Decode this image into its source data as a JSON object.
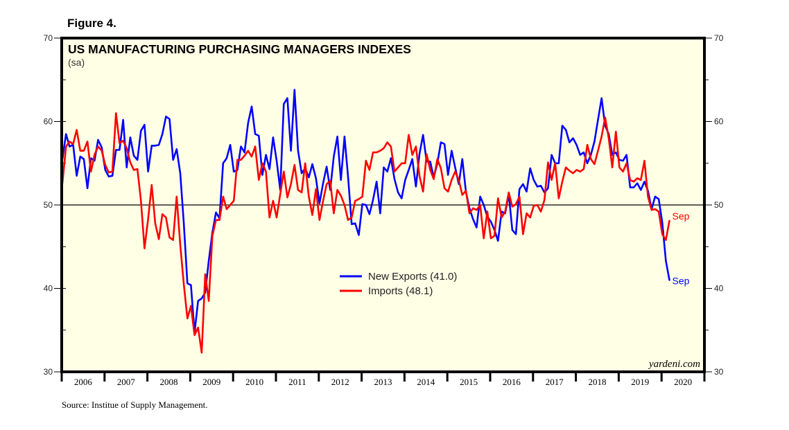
{
  "figure_label": "Figure 4.",
  "source": "Source: Institue of Supply Management.",
  "credit": "yardeni.com",
  "chart_data": {
    "type": "line",
    "title": "US MANUFACTURING PURCHASING MANAGERS INDEXES",
    "subtitle": "(sa)",
    "xlabel": "",
    "ylabel": "",
    "ylim": [
      30,
      70
    ],
    "yticks": [
      30,
      40,
      50,
      60,
      70
    ],
    "ytick_labels": [
      "30",
      "40",
      "50",
      "60",
      "70"
    ],
    "reference_line": 50,
    "x_start": "2006-01",
    "x_end": "2020-12",
    "x_frequency": "monthly",
    "x_tick_labels": [
      "2006",
      "2007",
      "2008",
      "2009",
      "2010",
      "2011",
      "2012",
      "2013",
      "2014",
      "2015",
      "2016",
      "2017",
      "2018",
      "2019",
      "2020"
    ],
    "legend_position": "center",
    "grid": false,
    "series": [
      {
        "name": "New Exports",
        "legend_label": "New Exports (41.0)",
        "color": "#0000ff",
        "end_label": "Sep",
        "last_value": 41.0,
        "values": [
          55.5,
          58.5,
          57.0,
          57.2,
          53.5,
          55.8,
          55.5,
          52.0,
          55.6,
          55.3,
          57.8,
          56.9,
          54.2,
          53.4,
          53.5,
          56.6,
          56.6,
          60.2,
          54.5,
          58.1,
          55.9,
          55.4,
          58.9,
          59.6,
          54.0,
          57.1,
          57.1,
          57.2,
          58.5,
          60.6,
          60.3,
          55.4,
          56.7,
          53.8,
          47.8,
          40.6,
          40.4,
          34.7,
          38.5,
          38.8,
          39.5,
          43.3,
          46.7,
          49.1,
          48.4,
          55.0,
          55.6,
          57.2,
          54.0,
          54.2,
          57.0,
          56.3,
          59.8,
          61.8,
          58.5,
          58.3,
          53.6,
          56.0,
          54.3,
          58.1,
          55.3,
          51.8,
          62.1,
          62.8,
          56.5,
          63.8,
          56.5,
          53.8,
          54.4,
          53.3,
          54.9,
          53.2,
          50.2,
          52.6,
          54.6,
          51.8,
          55.8,
          58.2,
          53.0,
          58.2,
          53.4,
          47.7,
          47.8,
          46.4,
          50.1,
          50.0,
          48.9,
          50.6,
          52.8,
          49.0,
          54.5,
          54.0,
          55.6,
          53.1,
          51.5,
          50.8,
          53.0,
          54.2,
          55.5,
          52.2,
          56.1,
          58.4,
          55.2,
          55.2,
          53.3,
          55.0,
          57.5,
          57.3,
          53.6,
          56.5,
          54.5,
          52.5,
          55.5,
          51.6,
          49.6,
          48.3,
          47.3,
          51.0,
          50.0,
          48.6,
          48.0,
          47.0,
          45.7,
          49.2,
          49.0,
          51.3,
          47.0,
          46.5,
          51.9,
          52.5,
          51.6,
          54.4,
          53.0,
          52.2,
          52.3,
          51.5,
          52.0,
          56.0,
          55.0,
          55.0,
          59.5,
          59.0,
          57.5,
          58.0,
          57.2,
          56.0,
          56.3,
          55.0,
          56.0,
          57.6,
          60.2,
          62.8,
          59.5,
          58.5,
          56.0,
          56.3,
          55.4,
          55.3,
          56.0,
          52.1,
          52.1,
          52.6,
          51.8,
          52.8,
          51.7,
          49.5,
          51.0,
          50.7,
          47.9,
          43.3,
          41.0
        ]
      },
      {
        "name": "Imports",
        "legend_label": "Imports (48.1)",
        "color": "#ff0000",
        "end_label": "Sep",
        "last_value": 48.1,
        "values": [
          52.6,
          57.0,
          57.6,
          57.3,
          59.0,
          56.5,
          56.5,
          57.6,
          54.0,
          56.0,
          57.0,
          56.5,
          54.8,
          53.9,
          54.0,
          61.0,
          57.4,
          57.7,
          56.8,
          55.1,
          54.2,
          54.3,
          50.5,
          44.8,
          48.3,
          52.4,
          47.8,
          45.9,
          48.9,
          48.5,
          46.1,
          45.8,
          51.0,
          45.2,
          40.5,
          36.4,
          37.9,
          34.4,
          35.3,
          32.3,
          41.7,
          38.5,
          46.3,
          48.2,
          48.2,
          51.0,
          49.5,
          50.0,
          50.5,
          55.4,
          55.4,
          55.9,
          56.5,
          55.8,
          57.0,
          53.0,
          55.0,
          54.0,
          48.5,
          50.5,
          48.5,
          51.3,
          54.0,
          50.9,
          52.5,
          54.8,
          51.8,
          51.5,
          55.0,
          51.0,
          48.8,
          51.9,
          48.2,
          50.5,
          52.5,
          52.9,
          49.0,
          51.8,
          51.1,
          50.0,
          48.2,
          48.5,
          50.5,
          50.7,
          51.0,
          55.3,
          54.2,
          56.3,
          56.3,
          56.5,
          56.8,
          57.5,
          57.0,
          54.0,
          54.5,
          55.0,
          55.0,
          58.4,
          56.0,
          57.0,
          53.5,
          51.6,
          56.1,
          54.2,
          53.1,
          55.5,
          54.4,
          52.0,
          51.6,
          53.0,
          54.0,
          53.0,
          51.2,
          51.7,
          49.0,
          49.6,
          49.4,
          50.0,
          46.0,
          49.2,
          46.0,
          46.3,
          50.8,
          48.5,
          49.2,
          51.5,
          49.8,
          50.1,
          51.0,
          46.5,
          49.0,
          48.5,
          49.9,
          50.0,
          49.2,
          50.6,
          55.1,
          53.0,
          55.0,
          50.8,
          52.8,
          54.5,
          54.1,
          53.8,
          54.2,
          54.0,
          54.3,
          57.2,
          55.5,
          54.9,
          56.5,
          58.2,
          60.5,
          58.0,
          54.5,
          58.8,
          54.5,
          54.0,
          55.0,
          53.0,
          52.8,
          53.2,
          53.0,
          55.3,
          51.0,
          49.4,
          49.5,
          49.2,
          46.5,
          45.8,
          48.1
        ]
      }
    ]
  }
}
